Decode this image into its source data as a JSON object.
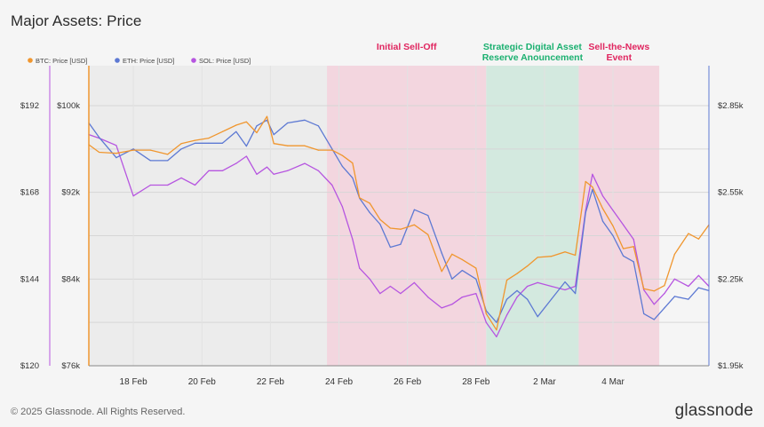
{
  "title": "Major Assets: Price",
  "footer": {
    "copyright": "© 2025 Glassnode. All Rights Reserved.",
    "brand": "glassnode"
  },
  "chart_data": {
    "type": "line",
    "title": "Major Assets: Price",
    "legend_position": "top-left",
    "grid": true,
    "series": [
      {
        "name": "BTC: Price [USD]",
        "color": "#f0962e",
        "axis": "btc",
        "values": [
          [
            16.7,
            96400
          ],
          [
            17.0,
            95700
          ],
          [
            17.5,
            95600
          ],
          [
            18.0,
            95900
          ],
          [
            18.5,
            95900
          ],
          [
            19.0,
            95500
          ],
          [
            19.4,
            96500
          ],
          [
            19.8,
            96800
          ],
          [
            20.2,
            97000
          ],
          [
            20.6,
            97600
          ],
          [
            21.0,
            98200
          ],
          [
            21.3,
            98500
          ],
          [
            21.6,
            97500
          ],
          [
            21.9,
            99000
          ],
          [
            22.1,
            96500
          ],
          [
            22.5,
            96300
          ],
          [
            23.0,
            96300
          ],
          [
            23.4,
            95900
          ],
          [
            23.8,
            95900
          ],
          [
            24.1,
            95400
          ],
          [
            24.4,
            94700
          ],
          [
            24.6,
            91500
          ],
          [
            24.9,
            91000
          ],
          [
            25.2,
            89500
          ],
          [
            25.5,
            88700
          ],
          [
            25.8,
            88600
          ],
          [
            26.2,
            89000
          ],
          [
            26.6,
            88100
          ],
          [
            27.0,
            84700
          ],
          [
            27.3,
            86300
          ],
          [
            27.6,
            85800
          ],
          [
            28.0,
            85000
          ],
          [
            28.3,
            80800
          ],
          [
            28.6,
            79300
          ],
          [
            28.9,
            83900
          ],
          [
            29.2,
            84500
          ],
          [
            29.5,
            85200
          ],
          [
            29.8,
            86000
          ],
          [
            30.2,
            86100
          ],
          [
            30.6,
            86500
          ],
          [
            30.9,
            86200
          ],
          [
            31.2,
            93000
          ],
          [
            31.4,
            92500
          ],
          [
            31.7,
            90500
          ],
          [
            32.0,
            88900
          ],
          [
            32.3,
            86800
          ],
          [
            32.6,
            87000
          ],
          [
            32.9,
            83100
          ],
          [
            33.2,
            82900
          ],
          [
            33.5,
            83400
          ],
          [
            33.8,
            86300
          ],
          [
            34.2,
            88200
          ],
          [
            34.5,
            87700
          ],
          [
            34.8,
            89000
          ]
        ]
      },
      {
        "name": "ETH: Price [USD]",
        "color": "#5d79d3",
        "axis": "eth",
        "values": [
          [
            16.7,
            2790
          ],
          [
            17.0,
            2740
          ],
          [
            17.5,
            2670
          ],
          [
            18.0,
            2700
          ],
          [
            18.5,
            2660
          ],
          [
            19.0,
            2660
          ],
          [
            19.4,
            2700
          ],
          [
            19.8,
            2720
          ],
          [
            20.2,
            2720
          ],
          [
            20.6,
            2720
          ],
          [
            21.0,
            2760
          ],
          [
            21.3,
            2710
          ],
          [
            21.6,
            2780
          ],
          [
            21.9,
            2800
          ],
          [
            22.1,
            2750
          ],
          [
            22.5,
            2790
          ],
          [
            23.0,
            2800
          ],
          [
            23.4,
            2780
          ],
          [
            23.8,
            2700
          ],
          [
            24.1,
            2640
          ],
          [
            24.4,
            2600
          ],
          [
            24.6,
            2530
          ],
          [
            24.9,
            2480
          ],
          [
            25.2,
            2440
          ],
          [
            25.5,
            2360
          ],
          [
            25.8,
            2370
          ],
          [
            26.2,
            2490
          ],
          [
            26.6,
            2470
          ],
          [
            27.0,
            2340
          ],
          [
            27.3,
            2250
          ],
          [
            27.6,
            2280
          ],
          [
            28.0,
            2250
          ],
          [
            28.3,
            2140
          ],
          [
            28.6,
            2100
          ],
          [
            28.9,
            2180
          ],
          [
            29.2,
            2210
          ],
          [
            29.5,
            2180
          ],
          [
            29.8,
            2120
          ],
          [
            30.2,
            2180
          ],
          [
            30.6,
            2240
          ],
          [
            30.9,
            2200
          ],
          [
            31.2,
            2480
          ],
          [
            31.4,
            2560
          ],
          [
            31.7,
            2450
          ],
          [
            32.0,
            2400
          ],
          [
            32.3,
            2330
          ],
          [
            32.6,
            2310
          ],
          [
            32.9,
            2130
          ],
          [
            33.2,
            2110
          ],
          [
            33.5,
            2150
          ],
          [
            33.8,
            2190
          ],
          [
            34.2,
            2180
          ],
          [
            34.5,
            2220
          ],
          [
            34.8,
            2210
          ]
        ]
      },
      {
        "name": "SOL: Price [USD]",
        "color": "#b655e0",
        "axis": "sol",
        "values": [
          [
            16.7,
            184
          ],
          [
            17.0,
            183
          ],
          [
            17.5,
            181
          ],
          [
            18.0,
            167
          ],
          [
            18.5,
            170
          ],
          [
            19.0,
            170
          ],
          [
            19.4,
            172
          ],
          [
            19.8,
            170
          ],
          [
            20.2,
            174
          ],
          [
            20.6,
            174
          ],
          [
            21.0,
            176
          ],
          [
            21.3,
            178
          ],
          [
            21.6,
            173
          ],
          [
            21.9,
            175
          ],
          [
            22.1,
            173
          ],
          [
            22.5,
            174
          ],
          [
            23.0,
            176
          ],
          [
            23.4,
            174
          ],
          [
            23.8,
            170
          ],
          [
            24.1,
            164
          ],
          [
            24.4,
            155
          ],
          [
            24.6,
            147
          ],
          [
            24.9,
            144
          ],
          [
            25.2,
            140
          ],
          [
            25.5,
            142
          ],
          [
            25.8,
            140
          ],
          [
            26.2,
            143
          ],
          [
            26.6,
            139
          ],
          [
            27.0,
            136
          ],
          [
            27.3,
            137
          ],
          [
            27.6,
            139
          ],
          [
            28.0,
            140
          ],
          [
            28.3,
            132
          ],
          [
            28.6,
            128
          ],
          [
            28.9,
            134
          ],
          [
            29.2,
            139
          ],
          [
            29.5,
            142
          ],
          [
            29.8,
            143
          ],
          [
            30.2,
            142
          ],
          [
            30.6,
            141
          ],
          [
            30.9,
            142
          ],
          [
            31.2,
            163
          ],
          [
            31.4,
            173
          ],
          [
            31.7,
            167
          ],
          [
            32.0,
            163
          ],
          [
            32.3,
            159
          ],
          [
            32.6,
            155
          ],
          [
            32.9,
            141
          ],
          [
            33.2,
            137
          ],
          [
            33.5,
            140
          ],
          [
            33.8,
            144
          ],
          [
            34.2,
            142
          ],
          [
            34.5,
            145
          ],
          [
            34.8,
            142
          ]
        ]
      }
    ],
    "axes": {
      "btc": {
        "min": 76000,
        "max": 100000,
        "ticks": [
          "$100k",
          "$92k",
          "$84k",
          "$76k"
        ],
        "tick_values": [
          100000,
          92000,
          84000,
          76000
        ]
      },
      "sol": {
        "min": 120,
        "max": 192,
        "ticks": [
          "$192",
          "$168",
          "$144",
          "$120"
        ],
        "tick_values": [
          192,
          168,
          144,
          120
        ]
      },
      "eth": {
        "min": 1950,
        "max": 2850,
        "ticks": [
          "$2.85k",
          "$2.55k",
          "$2.25k",
          "$1.95k"
        ],
        "tick_values": [
          2850,
          2550,
          2250,
          1950
        ]
      }
    },
    "x_range": [
      16.7,
      34.8
    ],
    "x_ticks": [
      {
        "label": "18 Feb",
        "x": 18
      },
      {
        "label": "20 Feb",
        "x": 20
      },
      {
        "label": "22 Feb",
        "x": 22
      },
      {
        "label": "24 Feb",
        "x": 24
      },
      {
        "label": "26 Feb",
        "x": 26
      },
      {
        "label": "28 Feb",
        "x": 28
      },
      {
        "label": "2 Mar",
        "x": 30
      },
      {
        "label": "4 Mar",
        "x": 32
      }
    ],
    "regions": [
      {
        "label": "Initial Sell-Off",
        "start": 23.65,
        "end": 28.3,
        "color": "#f3d6df",
        "text_color": "#e0255f"
      },
      {
        "label": "Strategic Digital Asset Reserve Anouncement",
        "start": 28.3,
        "end": 31.0,
        "color": "#d3e9df",
        "text_color": "#1bb070"
      },
      {
        "label": "Sell-the-News Event",
        "start": 31.0,
        "end": 33.35,
        "color": "#f3d6df",
        "text_color": "#e0255f"
      }
    ]
  }
}
